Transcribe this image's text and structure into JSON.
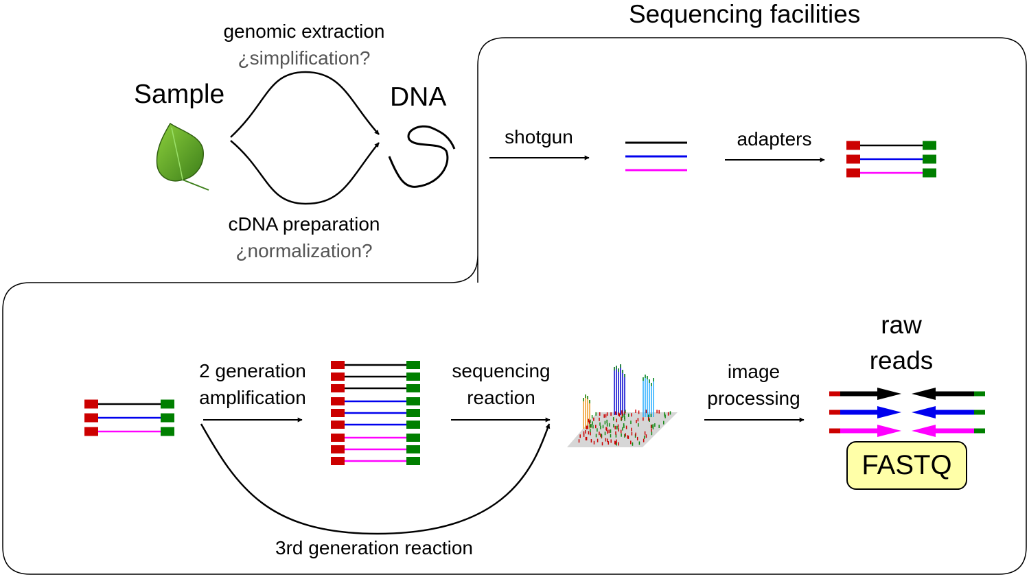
{
  "title": "Sequencing facilities",
  "sample": "Sample",
  "dna": "DNA",
  "genomic_extraction": "genomic extraction",
  "simplification": "¿simplification?",
  "cdna_preparation": "cDNA preparation",
  "normalization": "¿normalization?",
  "shotgun": "shotgun",
  "adapters": "adapters",
  "amplification_line1": "2 generation",
  "amplification_line2": "amplification",
  "sequencing_line1": "sequencing",
  "sequencing_line2": "reaction",
  "image_line1": "image",
  "image_line2": "processing",
  "raw_line1": "raw",
  "raw_line2": "reads",
  "fastq": "FASTQ",
  "third_generation": "3rd generation reaction",
  "colors": {
    "adapter_left": "#cc0000",
    "adapter_right": "#007f00",
    "strand_black": "#000000",
    "strand_blue": "#0000ee",
    "strand_magenta": "#ff00ff",
    "fastq_fill": "#ffffa8",
    "leaf": "#5aa02c"
  },
  "icons": [
    "leaf-icon",
    "dna-strand-icon",
    "sequencing-signal-plot-icon"
  ]
}
